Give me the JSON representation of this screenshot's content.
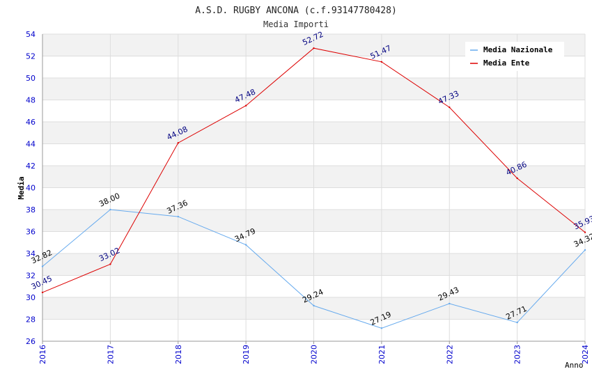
{
  "chart_data": {
    "type": "line",
    "title": "A.S.D. RUGBY ANCONA (c.f.93147780428)",
    "subtitle": "Media Importi",
    "xlabel": "Anno",
    "ylabel": "Media",
    "ylim": [
      26,
      54
    ],
    "ytick_step": 2,
    "grid": true,
    "legend_position": "top-right",
    "categories": [
      "2016",
      "2017",
      "2018",
      "2019",
      "2020",
      "2021",
      "2022",
      "2023",
      "2024"
    ],
    "series": [
      {
        "name": "Media Nazionale",
        "color": "#66aaee",
        "label_color": "#000000",
        "values": [
          32.82,
          38.0,
          37.36,
          34.79,
          29.24,
          27.19,
          29.43,
          27.71,
          34.32
        ],
        "labels": [
          "32.82",
          "38.00",
          "37.36",
          "34.79",
          "29.24",
          "27.19",
          "29.43",
          "27.71",
          "34.32"
        ]
      },
      {
        "name": "Media Ente",
        "color": "#dd0000",
        "label_color": "#000080",
        "values": [
          30.45,
          33.02,
          44.08,
          47.48,
          52.72,
          51.47,
          47.33,
          40.86,
          35.93
        ],
        "labels": [
          "30.45",
          "33.02",
          "44.08",
          "47.48",
          "52.72",
          "51.47",
          "47.33",
          "40.86",
          "35.93"
        ]
      }
    ]
  }
}
